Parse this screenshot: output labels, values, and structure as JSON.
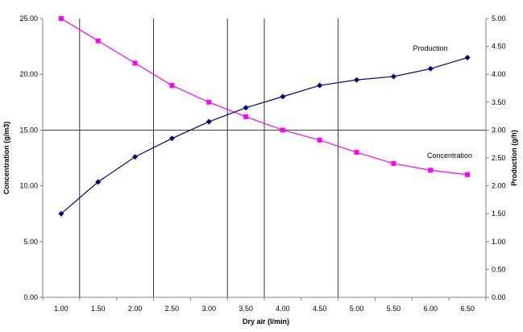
{
  "chart_data": {
    "type": "line",
    "xlabel": "Dry air (l/min)",
    "ylabel_left": "Concentration (g/m3)",
    "ylabel_right": "Production (g/h)",
    "x": [
      1.0,
      1.5,
      2.0,
      2.5,
      3.0,
      3.5,
      4.0,
      4.5,
      5.0,
      5.5,
      6.0,
      6.5
    ],
    "x_tick_labels": [
      "1.00",
      "1.50",
      "2.00",
      "2.50",
      "3.00",
      "3.50",
      "4.00",
      "4.50",
      "5.00",
      "5.50",
      "6.00",
      "6.50"
    ],
    "ylim_left": [
      0,
      25
    ],
    "ylim_right": [
      0,
      5
    ],
    "y_left_tick_labels": [
      "0.00",
      "5.00",
      "10.00",
      "15.00",
      "20.00",
      "25.00"
    ],
    "y_right_tick_labels": [
      "0.00",
      "0.50",
      "1.00",
      "1.50",
      "2.00",
      "2.50",
      "3.00",
      "3.50",
      "4.00",
      "4.50",
      "5.00"
    ],
    "grid": {
      "horizontal_at_left": [
        15
      ],
      "vertical_at_x": [
        1.25,
        2.25,
        3.25,
        3.75,
        4.75
      ]
    },
    "series": [
      {
        "name": "Concentration",
        "axis": "left",
        "color": "#ff00ff",
        "marker": "square",
        "values": [
          25.0,
          23.0,
          21.0,
          19.0,
          17.5,
          16.2,
          15.0,
          14.1,
          13.0,
          12.0,
          11.4,
          11.0
        ]
      },
      {
        "name": "Production",
        "axis": "right",
        "color": "#000080",
        "marker": "diamond",
        "values": [
          1.5,
          2.07,
          2.52,
          2.85,
          3.15,
          3.4,
          3.6,
          3.8,
          3.9,
          3.96,
          4.1,
          4.3
        ]
      }
    ]
  }
}
